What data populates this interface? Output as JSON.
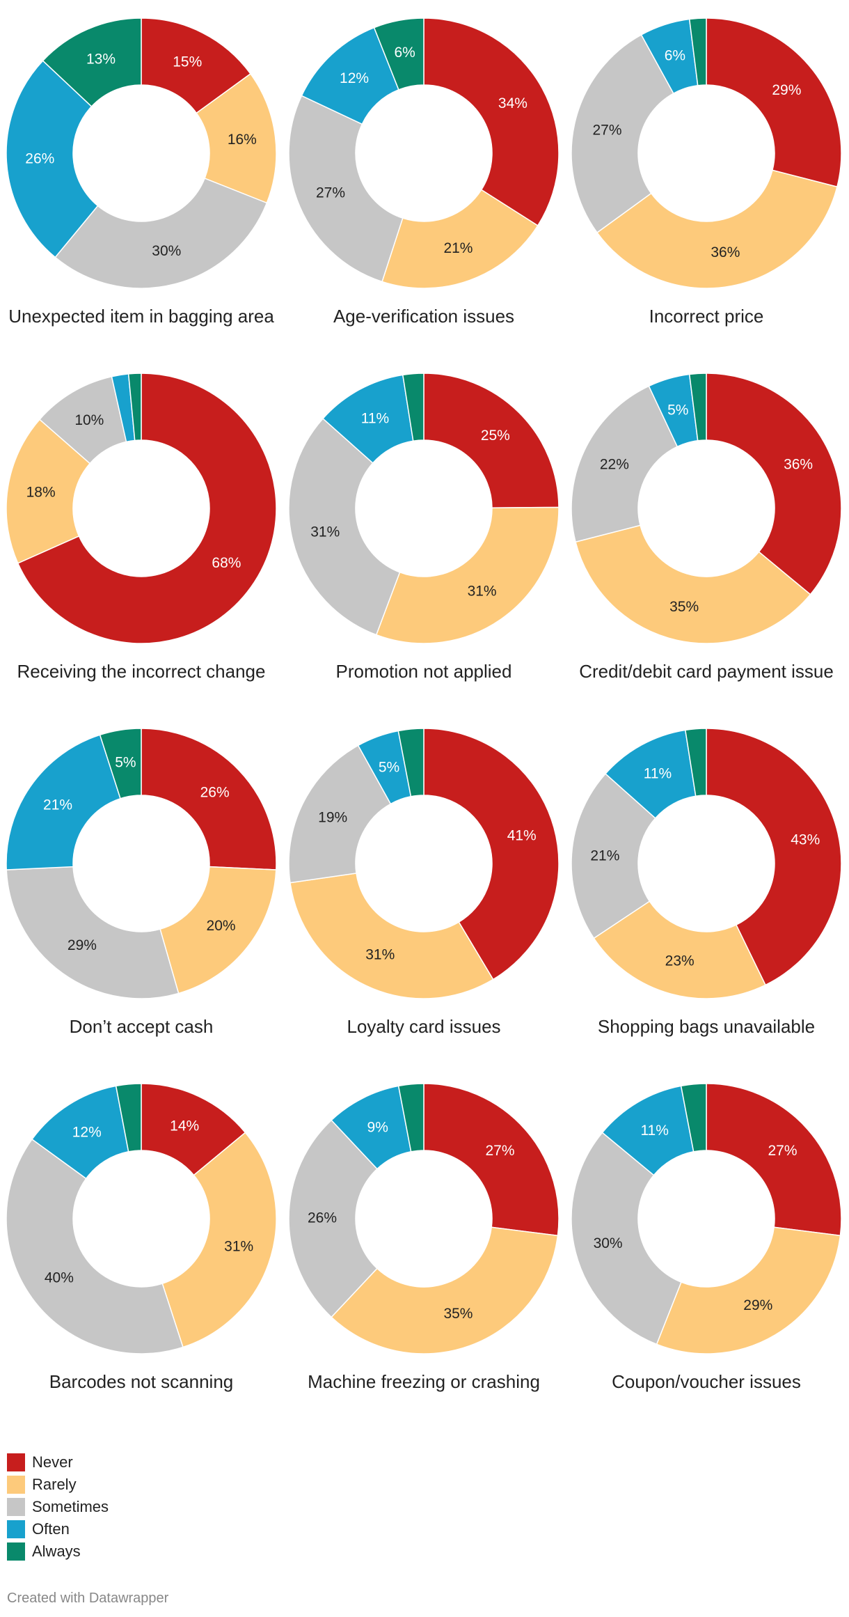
{
  "chart_data": {
    "type": "donut",
    "series_order": [
      "never",
      "rarely",
      "sometimes",
      "often",
      "always"
    ],
    "legend": [
      {
        "key": "never",
        "label": "Never",
        "color": "#c71e1d"
      },
      {
        "key": "rarely",
        "label": "Rarely",
        "color": "#fdca7b"
      },
      {
        "key": "sometimes",
        "label": "Sometimes",
        "color": "#c6c6c6"
      },
      {
        "key": "often",
        "label": "Often",
        "color": "#18a1cd"
      },
      {
        "key": "always",
        "label": "Always",
        "color": "#09896b"
      }
    ],
    "charts": [
      {
        "title": "Unexpected item in bagging area",
        "values": [
          15,
          16,
          30,
          26,
          13
        ],
        "labels": [
          "15%",
          "16%",
          "30%",
          "26%",
          "13%"
        ]
      },
      {
        "title": "Age-verification issues",
        "values": [
          34,
          21,
          27,
          12,
          6
        ],
        "labels": [
          "34%",
          "21%",
          "27%",
          "12%",
          "6%"
        ]
      },
      {
        "title": "Incorrect price",
        "values": [
          29,
          36,
          27,
          6,
          2
        ],
        "labels": [
          "29%",
          "36%",
          "27%",
          "6%",
          ""
        ]
      },
      {
        "title": "Receiving the incorrect change",
        "values": [
          68,
          18,
          10,
          2,
          1.5
        ],
        "labels": [
          "68%",
          "18%",
          "10%",
          "",
          ""
        ]
      },
      {
        "title": "Promotion not applied",
        "values": [
          25,
          31,
          31,
          11,
          2.5
        ],
        "labels": [
          "25%",
          "31%",
          "31%",
          "11%",
          ""
        ]
      },
      {
        "title": "Credit/debit card payment issue",
        "values": [
          36,
          35,
          22,
          5,
          2
        ],
        "labels": [
          "36%",
          "35%",
          "22%",
          "5%",
          ""
        ]
      },
      {
        "title": "Don’t accept cash",
        "values": [
          26,
          20,
          29,
          21,
          5
        ],
        "labels": [
          "26%",
          "20%",
          "29%",
          "21%",
          "5%"
        ]
      },
      {
        "title": "Loyalty card issues",
        "values": [
          41,
          31,
          19,
          5,
          3
        ],
        "labels": [
          "41%",
          "31%",
          "19%",
          "5%",
          ""
        ]
      },
      {
        "title": "Shopping bags unavailable",
        "values": [
          43,
          23,
          21,
          11,
          2.5
        ],
        "labels": [
          "43%",
          "23%",
          "21%",
          "11%",
          ""
        ]
      },
      {
        "title": "Barcodes not scanning",
        "values": [
          14,
          31,
          40,
          12,
          3
        ],
        "labels": [
          "14%",
          "31%",
          "40%",
          "12%",
          ""
        ]
      },
      {
        "title": "Machine freezing or crashing",
        "values": [
          27,
          35,
          26,
          9,
          3
        ],
        "labels": [
          "27%",
          "35%",
          "26%",
          "9%",
          ""
        ]
      },
      {
        "title": "Coupon/voucher issues",
        "values": [
          27,
          29,
          30,
          11,
          3
        ],
        "labels": [
          "27%",
          "29%",
          "30%",
          "11%",
          ""
        ]
      }
    ]
  },
  "footer": {
    "credit": "Created with Datawrapper"
  }
}
